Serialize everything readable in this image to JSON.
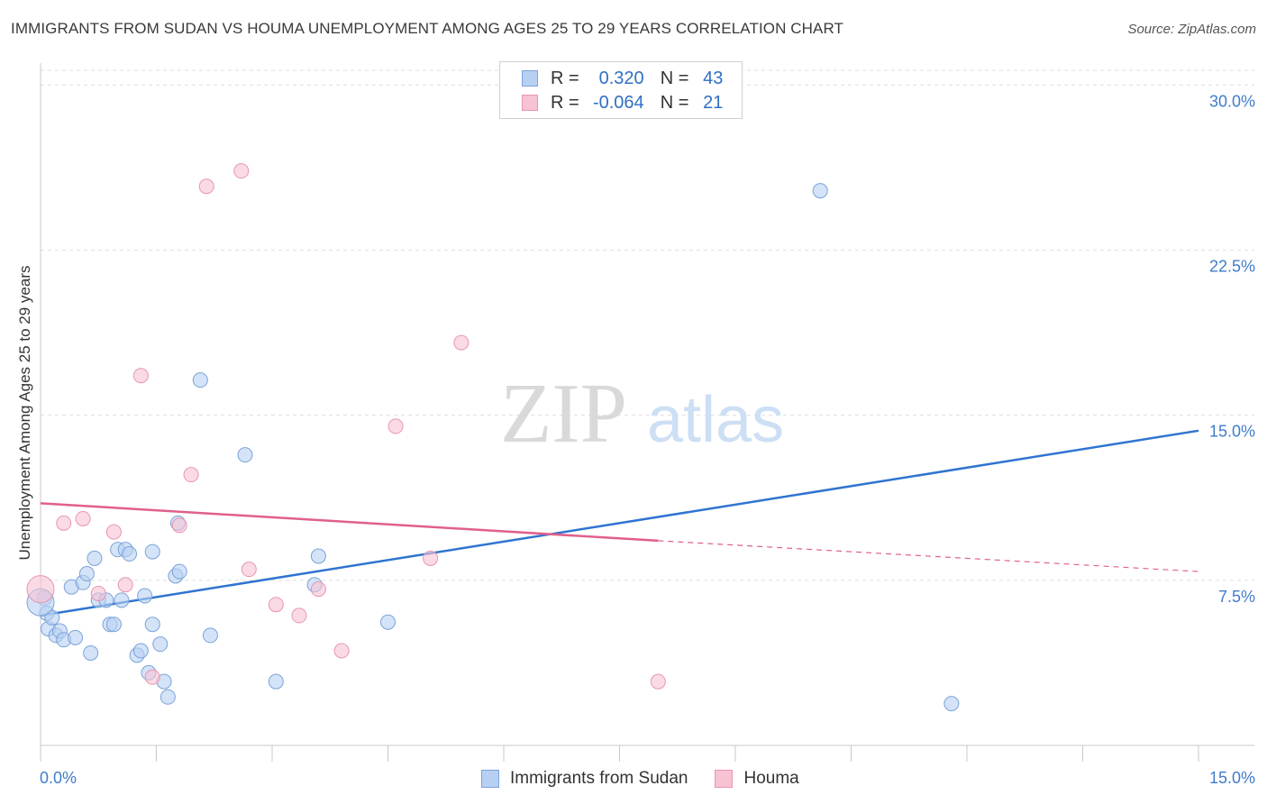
{
  "title": "IMMIGRANTS FROM SUDAN VS HOUMA UNEMPLOYMENT AMONG AGES 25 TO 29 YEARS CORRELATION CHART",
  "source": "Source: ZipAtlas.com",
  "watermark": {
    "zip": "ZIP",
    "atlas": "atlas"
  },
  "legend": {
    "r_label": "R =",
    "n_label": "N =",
    "sudan": {
      "r": "0.320",
      "n": "43"
    },
    "houma": {
      "r": "-0.064",
      "n": "21"
    }
  },
  "colors": {
    "sudan_fill": "#b7d0f2",
    "sudan_stroke": "#7aa3d9",
    "sudan_line": "#2f74d0",
    "houma_fill": "#f7c3d3",
    "houma_stroke": "#e995b0",
    "houma_line": "#e0608a",
    "axis_text": "#3f7ccc"
  },
  "chart_data": {
    "type": "scatter",
    "title": "IMMIGRANTS FROM SUDAN VS HOUMA UNEMPLOYMENT AMONG AGES 25 TO 29 YEARS CORRELATION CHART",
    "xlabel": "",
    "ylabel": "Unemployment Among Ages 25 to 29 years",
    "xlim": [
      0,
      15
    ],
    "ylim": [
      0,
      31
    ],
    "x_tick_labels": [
      "0.0%",
      "15.0%"
    ],
    "y_ticks": [
      7.5,
      15.0,
      22.5,
      30.0
    ],
    "y_tick_labels": [
      "7.5%",
      "15.0%",
      "22.5%",
      "30.0%"
    ],
    "series": [
      {
        "name": "Immigrants from Sudan",
        "points": [
          [
            0.05,
            6.7
          ],
          [
            0.08,
            6.0
          ],
          [
            0.1,
            5.3
          ],
          [
            0.15,
            5.8
          ],
          [
            0.2,
            5.0
          ],
          [
            0.25,
            5.2
          ],
          [
            0.3,
            4.8
          ],
          [
            0.4,
            7.2
          ],
          [
            0.45,
            4.9
          ],
          [
            0.55,
            7.4
          ],
          [
            0.6,
            7.8
          ],
          [
            0.65,
            4.2
          ],
          [
            0.7,
            8.5
          ],
          [
            0.75,
            6.6
          ],
          [
            0.85,
            6.6
          ],
          [
            0.9,
            5.5
          ],
          [
            0.95,
            5.5
          ],
          [
            1.0,
            8.9
          ],
          [
            1.05,
            6.6
          ],
          [
            1.1,
            8.9
          ],
          [
            1.15,
            8.7
          ],
          [
            1.25,
            4.1
          ],
          [
            1.3,
            4.3
          ],
          [
            1.35,
            6.8
          ],
          [
            1.4,
            3.3
          ],
          [
            1.45,
            8.8
          ],
          [
            1.45,
            5.5
          ],
          [
            1.55,
            4.6
          ],
          [
            1.6,
            2.9
          ],
          [
            1.65,
            2.2
          ],
          [
            1.75,
            7.7
          ],
          [
            1.78,
            10.1
          ],
          [
            1.8,
            7.9
          ],
          [
            2.07,
            16.6
          ],
          [
            2.2,
            5.0
          ],
          [
            2.65,
            13.2
          ],
          [
            3.05,
            2.9
          ],
          [
            3.55,
            7.3
          ],
          [
            3.6,
            8.6
          ],
          [
            4.5,
            5.6
          ],
          [
            10.1,
            25.2
          ],
          [
            11.8,
            1.9
          ],
          [
            0.0,
            6.5
          ]
        ]
      },
      {
        "name": "Houma",
        "points": [
          [
            0.0,
            7.1
          ],
          [
            0.3,
            10.1
          ],
          [
            0.55,
            10.3
          ],
          [
            0.75,
            6.9
          ],
          [
            0.95,
            9.7
          ],
          [
            1.1,
            7.3
          ],
          [
            1.3,
            16.8
          ],
          [
            1.45,
            3.1
          ],
          [
            1.8,
            10.0
          ],
          [
            1.95,
            12.3
          ],
          [
            2.15,
            25.4
          ],
          [
            2.6,
            26.1
          ],
          [
            2.7,
            8.0
          ],
          [
            3.05,
            6.4
          ],
          [
            3.35,
            5.9
          ],
          [
            3.6,
            7.1
          ],
          [
            3.9,
            4.3
          ],
          [
            4.6,
            14.5
          ],
          [
            5.05,
            8.5
          ],
          [
            5.45,
            18.3
          ],
          [
            8.0,
            2.9
          ]
        ]
      }
    ],
    "trend_lines": [
      {
        "name": "Immigrants from Sudan",
        "x": [
          0,
          15
        ],
        "y": [
          5.9,
          14.3
        ]
      },
      {
        "name": "Houma",
        "x": [
          0,
          8.0
        ],
        "y": [
          11.0,
          9.3
        ],
        "dashed_extension": {
          "x": [
            8.0,
            15
          ],
          "y": [
            9.3,
            7.9
          ]
        }
      }
    ]
  },
  "bottom_legend": {
    "sudan": "Immigrants from Sudan",
    "houma": "Houma"
  }
}
